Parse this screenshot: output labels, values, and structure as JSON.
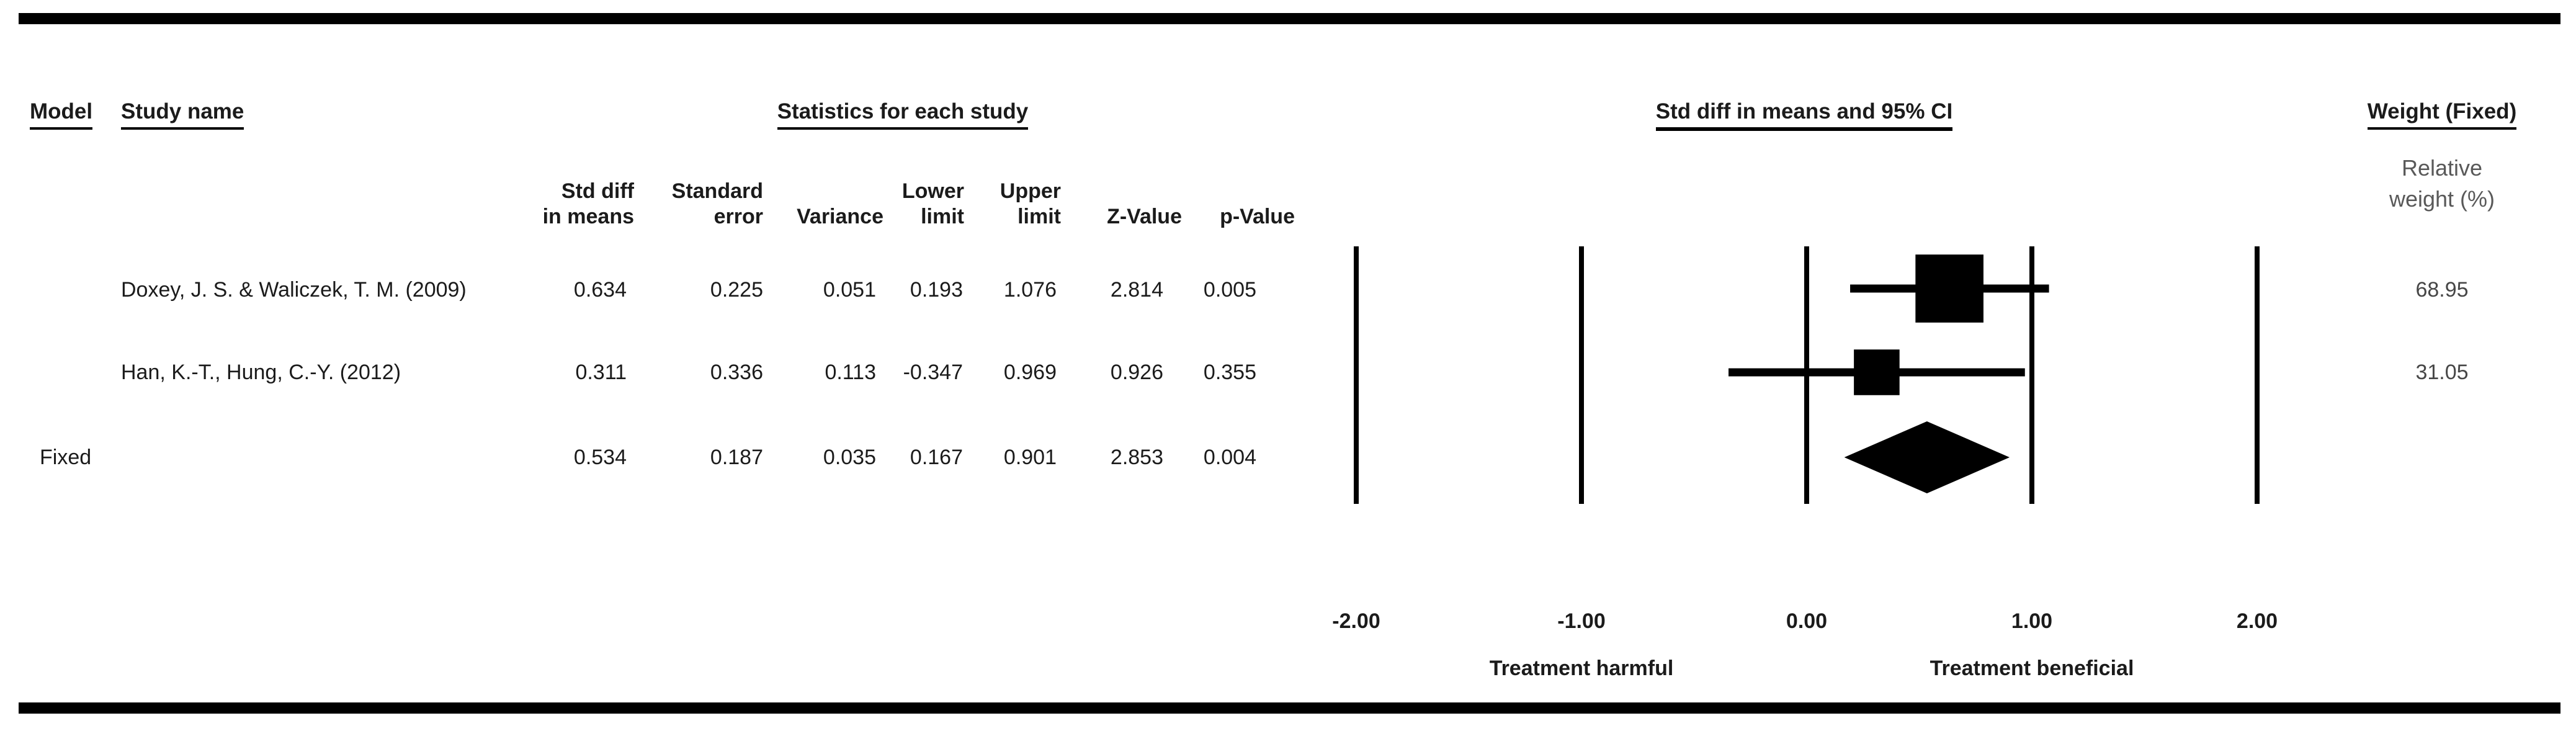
{
  "table": {
    "headers": {
      "model": "Model",
      "study_name": "Study name",
      "statistics": "Statistics for each study",
      "plot": "Std diff in means and 95% CI",
      "weight": "Weight (Fixed)"
    },
    "sub_headers": {
      "columns": [
        {
          "line1": "Std diff",
          "line2": "in means"
        },
        {
          "line1": "Standard",
          "line2": "error"
        },
        {
          "line1": "",
          "line2": "Variance"
        },
        {
          "line1": "Lower",
          "line2": "limit"
        },
        {
          "line1": "Upper",
          "line2": "limit"
        },
        {
          "line1": "",
          "line2": "Z-Value"
        },
        {
          "line1": "",
          "line2": "p-Value"
        }
      ],
      "weight_line1": "Relative",
      "weight_line2": "weight (%)"
    },
    "rows": [
      {
        "model": "",
        "study": "Doxey, J. S. & Waliczek, T. M. (2009)",
        "std_diff": "0.634",
        "std_err": "0.225",
        "variance": "0.051",
        "lower": "0.193",
        "upper": "1.076",
        "z": "2.814",
        "p": "0.005",
        "weight": "68.95"
      },
      {
        "model": "",
        "study": "Han, K.-T., Hung, C.-Y. (2012)",
        "std_diff": "0.311",
        "std_err": "0.336",
        "variance": "0.113",
        "lower": "-0.347",
        "upper": "0.969",
        "z": "0.926",
        "p": "0.355",
        "weight": "31.05"
      },
      {
        "model": "Fixed",
        "study": "",
        "std_diff": "0.534",
        "std_err": "0.187",
        "variance": "0.035",
        "lower": "0.167",
        "upper": "0.901",
        "z": "2.853",
        "p": "0.004",
        "weight": ""
      }
    ]
  },
  "chart_data": {
    "type": "forest",
    "title": "Std diff in means and 95% CI",
    "x_ticks": [
      -2.0,
      -1.0,
      0.0,
      1.0,
      2.0
    ],
    "x_tick_labels": [
      "-2.00",
      "-1.00",
      "0.00",
      "1.00",
      "2.00"
    ],
    "xlim": [
      -2.5,
      2.5
    ],
    "grid": "vertical-reference-lines",
    "legend_position": "none",
    "annotations": {
      "left": "Treatment harmful",
      "right": "Treatment beneficial"
    },
    "series": [
      {
        "name": "Doxey, J. S. & Waliczek, T. M. (2009)",
        "estimate": 0.634,
        "ci_lower": 0.193,
        "ci_upper": 1.076,
        "weight_pct": 68.95,
        "marker": "square"
      },
      {
        "name": "Han, K.-T., Hung, C.-Y. (2012)",
        "estimate": 0.311,
        "ci_lower": -0.347,
        "ci_upper": 0.969,
        "weight_pct": 31.05,
        "marker": "square"
      },
      {
        "name": "Fixed",
        "estimate": 0.534,
        "ci_lower": 0.167,
        "ci_upper": 0.901,
        "weight_pct": null,
        "marker": "diamond"
      }
    ]
  }
}
